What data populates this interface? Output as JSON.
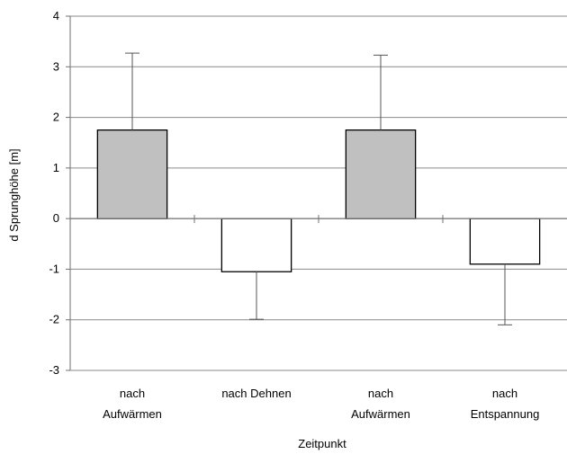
{
  "chart_data": {
    "type": "bar",
    "title": "",
    "xlabel": "Zeitpunkt",
    "ylabel": "d Sprunghöhe [m]",
    "ylim": [
      -3,
      4
    ],
    "yticks": [
      "4",
      "3",
      "2",
      "1",
      "0",
      "-1",
      "-2",
      "-3"
    ],
    "grid": true,
    "categories": [
      [
        "nach",
        "Aufwärmen"
      ],
      [
        "nach Dehnen"
      ],
      [
        "nach",
        "Aufwärmen"
      ],
      [
        "nach",
        "Entspannung"
      ]
    ],
    "values": [
      1.75,
      -1.05,
      1.75,
      -0.9
    ],
    "error_bars": [
      {
        "direction": "up",
        "end": 3.27
      },
      {
        "direction": "down",
        "end": -1.99
      },
      {
        "direction": "up",
        "end": 3.23
      },
      {
        "direction": "down",
        "end": -2.1
      }
    ],
    "bar_colors": [
      "#c0c0c0",
      "#ffffff",
      "#c0c0c0",
      "#ffffff"
    ]
  }
}
